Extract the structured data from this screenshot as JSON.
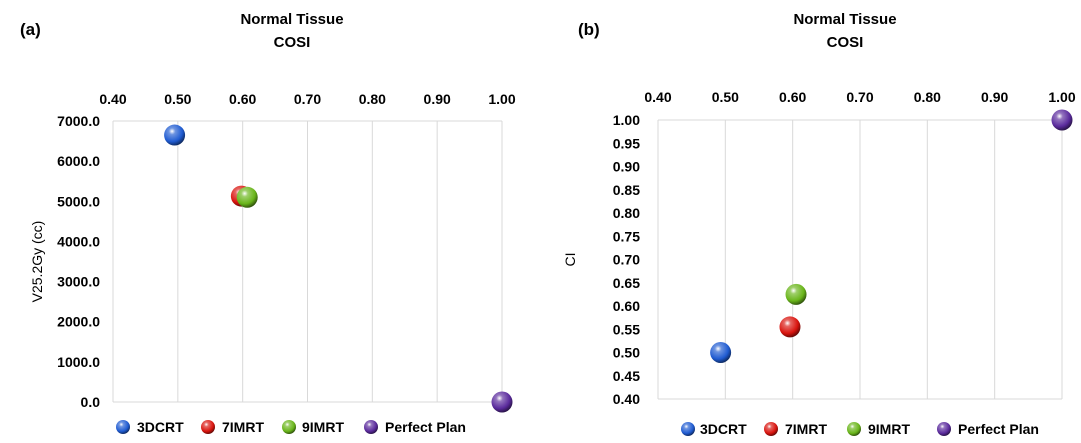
{
  "chart_data": [
    {
      "type": "scatter",
      "panel_label": "(a)",
      "title": "Normal Tissue\nCOSI",
      "xlabel": "",
      "ylabel": "V25.2Gy (cc)",
      "x_axis_position": "top",
      "xlim": [
        0.4,
        1.0
      ],
      "ylim": [
        0.0,
        7000.0
      ],
      "x_ticks": [
        "0.40",
        "0.50",
        "0.60",
        "0.70",
        "0.80",
        "0.90",
        "1.00"
      ],
      "y_ticks": [
        "7000.0",
        "6000.0",
        "5000.0",
        "4000.0",
        "3000.0",
        "2000.0",
        "1000.0",
        "0.0"
      ],
      "grid": "vertical",
      "legend_position": "bottom",
      "series": [
        {
          "name": "3DCRT",
          "color": "#1f5bd1",
          "points": [
            {
              "x": 0.495,
              "y": 6650.0
            }
          ]
        },
        {
          "name": "7IMRT",
          "color": "#d9140e",
          "points": [
            {
              "x": 0.598,
              "y": 5130.0
            }
          ]
        },
        {
          "name": "9IMRT",
          "color": "#69b51a",
          "points": [
            {
              "x": 0.607,
              "y": 5100.0
            }
          ]
        },
        {
          "name": "Perfect Plan",
          "color": "#5a2a9c",
          "points": [
            {
              "x": 1.0,
              "y": 0.0
            }
          ]
        }
      ]
    },
    {
      "type": "scatter",
      "panel_label": "(b)",
      "title": "Normal Tissue\nCOSI",
      "xlabel": "",
      "ylabel": "CI",
      "x_axis_position": "top",
      "xlim": [
        0.4,
        1.0
      ],
      "ylim": [
        0.4,
        1.0
      ],
      "x_ticks": [
        "0.40",
        "0.50",
        "0.60",
        "0.70",
        "0.80",
        "0.90",
        "1.00"
      ],
      "y_ticks": [
        "1.00",
        "0.95",
        "0.90",
        "0.85",
        "0.80",
        "0.75",
        "0.70",
        "0.65",
        "0.60",
        "0.55",
        "0.50",
        "0.45",
        "0.40"
      ],
      "grid": "vertical",
      "legend_position": "bottom",
      "series": [
        {
          "name": "3DCRT",
          "color": "#1f5bd1",
          "points": [
            {
              "x": 0.493,
              "y": 0.5
            }
          ]
        },
        {
          "name": "7IMRT",
          "color": "#d9140e",
          "points": [
            {
              "x": 0.596,
              "y": 0.555
            }
          ]
        },
        {
          "name": "9IMRT",
          "color": "#69b51a",
          "points": [
            {
              "x": 0.605,
              "y": 0.625
            }
          ]
        },
        {
          "name": "Perfect Plan",
          "color": "#5a2a9c",
          "points": [
            {
              "x": 1.0,
              "y": 1.0
            }
          ]
        }
      ]
    }
  ]
}
